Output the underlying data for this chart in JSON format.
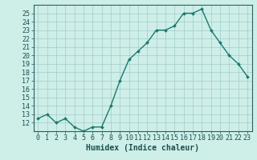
{
  "xlabel": "Humidex (Indice chaleur)",
  "ylabel": "",
  "x": [
    0,
    1,
    2,
    3,
    4,
    5,
    6,
    7,
    8,
    9,
    10,
    11,
    12,
    13,
    14,
    15,
    16,
    17,
    18,
    19,
    20,
    21,
    22,
    23
  ],
  "y": [
    12.5,
    13,
    12,
    12.5,
    11.5,
    11,
    11.5,
    11.5,
    14,
    17,
    19.5,
    20.5,
    21.5,
    23,
    23,
    23.5,
    25,
    25,
    25.5,
    23,
    21.5,
    20,
    19,
    17.5
  ],
  "line_color": "#1a7a6e",
  "marker": "D",
  "marker_size": 2,
  "background_color": "#ceeee8",
  "grid_color": "#a0cccc",
  "axis_color": "#2a6060",
  "ylim": [
    11,
    26
  ],
  "yticks": [
    12,
    13,
    14,
    15,
    16,
    17,
    18,
    19,
    20,
    21,
    22,
    23,
    24,
    25
  ],
  "xlim": [
    -0.5,
    23.5
  ],
  "tick_label_color": "#1a5050",
  "xlabel_fontsize": 7,
  "tick_fontsize": 6,
  "linewidth": 1.0
}
